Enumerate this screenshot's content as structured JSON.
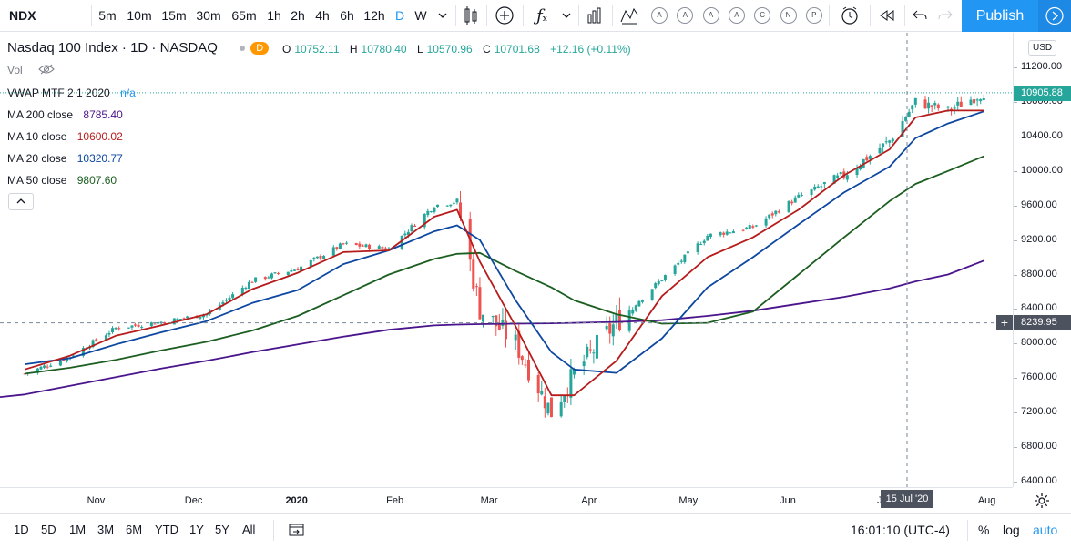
{
  "toolbar": {
    "symbol": "NDX",
    "intervals": [
      "5m",
      "10m",
      "15m",
      "30m",
      "65m",
      "1h",
      "2h",
      "4h",
      "6h",
      "12h",
      "D",
      "W"
    ],
    "active_interval": "D",
    "indicator_labels": [
      "A",
      "A",
      "A",
      "A",
      "C",
      "N",
      "P"
    ],
    "publish_label": "Publish"
  },
  "legend": {
    "title": "Nasdaq 100 Index · 1D · NASDAQ",
    "badge": "D",
    "ohlc": {
      "o_label": "O",
      "o": "10752.11",
      "h_label": "H",
      "h": "10780.40",
      "l_label": "L",
      "l": "10570.96",
      "c_label": "C",
      "c": "10701.68",
      "change": "+12.16 (+0.11%)"
    },
    "vol_label": "Vol",
    "vwap_label": "VWAP MTF 2 1 2020",
    "vwap_value": "n/a",
    "indicators": [
      {
        "label": "MA 200 close",
        "value": "8785.40",
        "color": "#4a148c"
      },
      {
        "label": "MA 10 close",
        "value": "10600.02",
        "color": "#b71c1c"
      },
      {
        "label": "MA 20 close",
        "value": "10320.77",
        "color": "#0d47a1"
      },
      {
        "label": "MA 50 close",
        "value": "9807.60",
        "color": "#1b5e20"
      }
    ],
    "collapse_icon": "chevron-up-icon"
  },
  "price_axis": {
    "currency": "USD",
    "labels": [
      "11200.00",
      "10800.00",
      "10400.00",
      "10000.00",
      "9600.00",
      "9200.00",
      "8800.00",
      "8400.00",
      "8000.00",
      "7600.00",
      "7200.00",
      "6800.00",
      "6400.00"
    ],
    "last_price": "10905.88",
    "crosshair_price": "8239.95"
  },
  "time_axis": {
    "labels": [
      "Nov",
      "Dec",
      "2020",
      "Feb",
      "Mar",
      "Apr",
      "May",
      "Jun",
      "Jul",
      "Aug"
    ],
    "crosshair_date": "15 Jul '20"
  },
  "bottom_bar": {
    "ranges": [
      "1D",
      "5D",
      "1M",
      "3M",
      "6M",
      "YTD",
      "1Y",
      "5Y",
      "All"
    ],
    "clock": "16:01:10 (UTC-4)",
    "percent": "%",
    "log": "log",
    "auto": "auto"
  },
  "colors": {
    "up": "#26a69a",
    "down": "#ef5350",
    "accent": "#2196f3",
    "ma200": "#4a148c",
    "ma10": "#b71c1c",
    "ma20": "#0d47a1",
    "ma50": "#1b5e20"
  },
  "chart_data": {
    "type": "candlestick",
    "x": [
      "2019-10-10",
      "2019-10-24",
      "2019-11-07",
      "2019-11-21",
      "2019-12-05",
      "2019-12-19",
      "2020-01-02",
      "2020-01-16",
      "2020-01-30",
      "2020-02-13",
      "2020-02-20",
      "2020-02-27",
      "2020-03-09",
      "2020-03-20",
      "2020-03-27",
      "2020-04-09",
      "2020-04-23",
      "2020-05-07",
      "2020-05-21",
      "2020-06-04",
      "2020-06-18",
      "2020-07-02",
      "2020-07-10",
      "2020-07-20",
      "2020-07-31"
    ],
    "close": [
      7650,
      7850,
      8180,
      8250,
      8340,
      8730,
      8870,
      9150,
      9100,
      9600,
      9650,
      8400,
      8000,
      7200,
      7650,
      8250,
      8750,
      9250,
      9350,
      9700,
      9950,
      10350,
      10800,
      10700,
      10905
    ],
    "series": [
      {
        "name": "MA 200 close",
        "values": [
          7410,
          7510,
          7610,
          7710,
          7800,
          7900,
          7990,
          8080,
          8160,
          8210,
          8220,
          8225,
          8230,
          8235,
          8240,
          8250,
          8270,
          8320,
          8380,
          8460,
          8540,
          8640,
          8720,
          8800,
          8960
        ]
      },
      {
        "name": "MA 50 close",
        "values": [
          7650,
          7720,
          7810,
          7920,
          8020,
          8150,
          8320,
          8560,
          8800,
          8980,
          9040,
          9050,
          8840,
          8650,
          8500,
          8340,
          8230,
          8240,
          8370,
          8800,
          9230,
          9650,
          9850,
          10000,
          10170
        ]
      },
      {
        "name": "MA 20 close",
        "values": [
          7760,
          7830,
          7990,
          8130,
          8260,
          8470,
          8620,
          8920,
          9080,
          9300,
          9370,
          9200,
          8500,
          7900,
          7700,
          7660,
          8060,
          8650,
          9000,
          9380,
          9750,
          10050,
          10380,
          10550,
          10690
        ]
      },
      {
        "name": "MA 10 close",
        "values": [
          7700,
          7860,
          8090,
          8210,
          8340,
          8630,
          8820,
          9060,
          9080,
          9470,
          9550,
          8950,
          8200,
          7400,
          7400,
          7800,
          8550,
          9000,
          9230,
          9550,
          9950,
          10250,
          10620,
          10700,
          10700
        ]
      }
    ],
    "ylim": [
      6400,
      11400
    ]
  }
}
